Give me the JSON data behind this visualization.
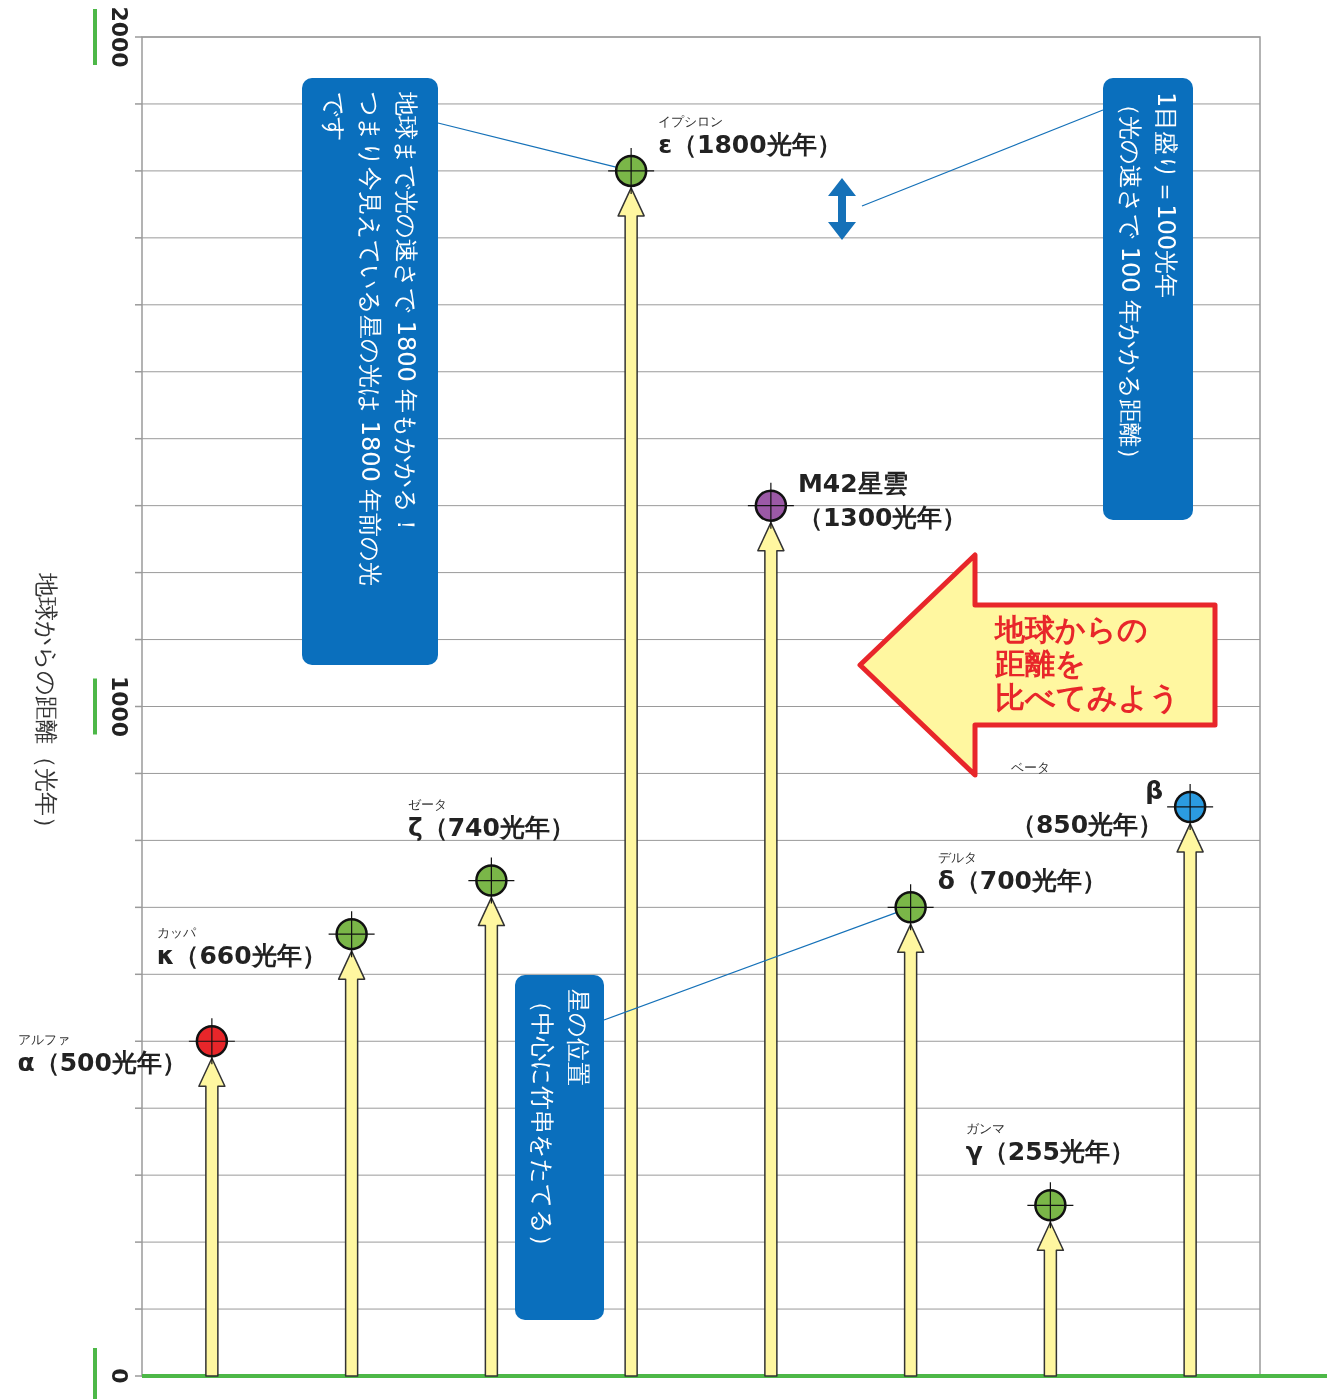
{
  "chart_data": {
    "type": "lollipop",
    "ylabel": "地球からの距離（光年）",
    "categories": [
      null,
      null,
      null,
      null,
      null,
      null,
      null,
      null
    ],
    "values": [
      500,
      660,
      740,
      1800,
      1300,
      700,
      255,
      850
    ],
    "colors": [
      "#e8262a",
      "#7ab648",
      "#7ab648",
      "#7ab648",
      "#9b59a6",
      "#7ab648",
      "#7ab648",
      "#2b9be0"
    ],
    "value_labels": [
      "α（500光年）",
      "κ（660光年）",
      "ζ（740光年）",
      "ε（1800光年）",
      "M42星雲（1300光年）",
      "δ（700光年）",
      "γ（255光年）",
      "β（850光年）"
    ],
    "ylim": [
      0,
      2000
    ],
    "yticks": [
      0,
      {
        "value": 100,
        "label": null
      },
      {
        "value": 200,
        "label": null
      },
      {
        "value": 300,
        "label": null
      },
      {
        "value": 400,
        "label": null
      },
      {
        "value": 500,
        "label": null
      },
      {
        "value": 600,
        "label": null
      },
      {
        "value": 700,
        "label": null
      },
      {
        "value": 800,
        "label": null
      },
      {
        "value": 900,
        "label": null
      },
      1000,
      {
        "value": 1100,
        "label": null
      },
      {
        "value": 1200,
        "label": null
      },
      {
        "value": 1300,
        "label": null
      },
      {
        "value": 1400,
        "label": null
      },
      {
        "value": 1500,
        "label": null
      },
      {
        "value": 1600,
        "label": null
      },
      {
        "value": 1700,
        "label": null
      },
      {
        "value": 1800,
        "label": null
      },
      {
        "value": 1900,
        "label": null
      },
      2000
    ],
    "grid": "y",
    "marker": "circle",
    "tick_labels": "y",
    "annotations": [
      "地球まで光の速さで 1800 年もかかる！つまり今見えている星の光は 1800 年前の光です",
      "1目盛り＝100光年（光の速さで 100 年かかる距離）",
      "星の位置（中心に竹串をたてる）",
      "地球からの距離を比べてみよう",
      "アルファ",
      "カッパ",
      "ゼータ",
      "イプシロン",
      "デルタ",
      "ガンマ",
      "ベータ"
    ]
  }
}
